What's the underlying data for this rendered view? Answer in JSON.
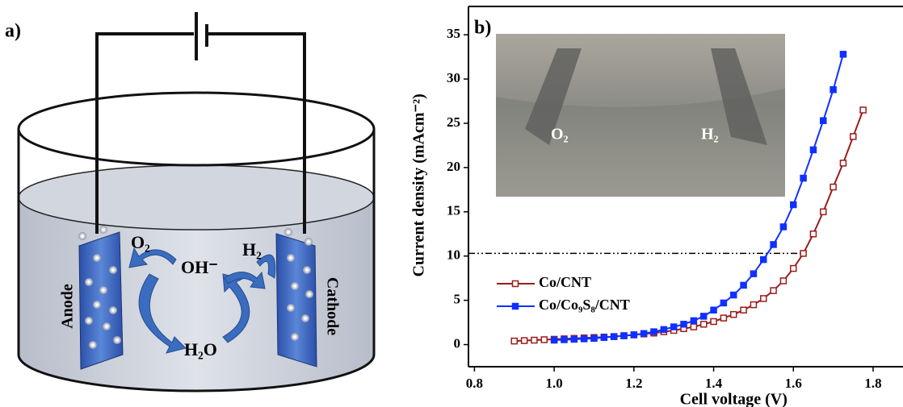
{
  "diagram": {
    "panel_label": "a)",
    "anode": "Anode",
    "cathode": "Cathode",
    "o2": "O₂",
    "oh": "OH⁻",
    "h2": "H₂",
    "h2o": "H₂O"
  },
  "chart_data": {
    "type": "line",
    "panel_label": "b)",
    "x_label": "Cell voltage (V)",
    "y_label": "Current density (mAcm⁻²)",
    "inset_labels": [
      "O₂",
      "H₂"
    ],
    "xlim": [
      0.785,
      1.875
    ],
    "ylim": [
      -2.5,
      38.2
    ],
    "xticks": [
      0.8,
      {
        "value": 1,
        "label": "1.0"
      },
      1.2,
      1.4,
      1.6,
      1.8
    ],
    "yticks": [
      0,
      5,
      10,
      15,
      20,
      25,
      30,
      35
    ],
    "hline": {
      "y": 10.3,
      "xmax": 1.625
    },
    "legend": "center-left",
    "series": [
      {
        "name": "Co/CNT",
        "color": "#9b1c1c",
        "marker": "open-square",
        "x": [
          0.9,
          0.925,
          0.95,
          0.975,
          1.0,
          1.025,
          1.05,
          1.075,
          1.1,
          1.125,
          1.15,
          1.175,
          1.2,
          1.225,
          1.25,
          1.275,
          1.3,
          1.325,
          1.35,
          1.375,
          1.4,
          1.425,
          1.45,
          1.475,
          1.5,
          1.525,
          1.55,
          1.575,
          1.6,
          1.625,
          1.65,
          1.675,
          1.7,
          1.725,
          1.75,
          1.775
        ],
        "values": [
          0.4,
          0.45,
          0.5,
          0.55,
          0.6,
          0.65,
          0.7,
          0.75,
          0.8,
          0.85,
          0.9,
          1.0,
          1.1,
          1.2,
          1.3,
          1.45,
          1.6,
          1.8,
          2.0,
          2.3,
          2.6,
          3.0,
          3.4,
          3.9,
          4.5,
          5.2,
          6.1,
          7.2,
          8.6,
          10.3,
          12.5,
          15.0,
          17.8,
          20.5,
          23.5,
          26.5
        ]
      },
      {
        "name": "Co/Co₉S₈/CNT",
        "color": "#1030ff",
        "marker": "filled-square",
        "x": [
          1.0,
          1.025,
          1.05,
          1.075,
          1.1,
          1.125,
          1.15,
          1.175,
          1.2,
          1.225,
          1.25,
          1.275,
          1.3,
          1.325,
          1.35,
          1.375,
          1.4,
          1.425,
          1.45,
          1.475,
          1.5,
          1.525,
          1.55,
          1.575,
          1.6,
          1.625,
          1.65,
          1.675,
          1.7,
          1.725
        ],
        "values": [
          0.5,
          0.55,
          0.6,
          0.65,
          0.7,
          0.8,
          0.9,
          1.0,
          1.1,
          1.25,
          1.45,
          1.7,
          2.0,
          2.3,
          2.7,
          3.2,
          3.9,
          4.7,
          5.6,
          6.7,
          8.0,
          9.6,
          11.3,
          13.3,
          15.8,
          18.8,
          22.0,
          25.3,
          28.8,
          32.8
        ]
      }
    ]
  }
}
